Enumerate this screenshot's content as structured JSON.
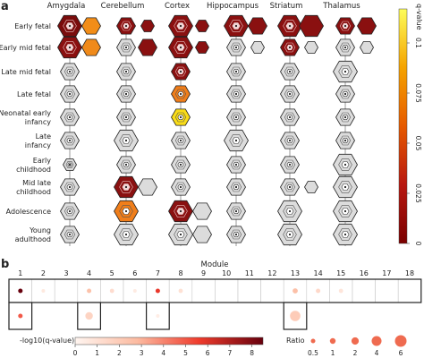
{
  "panel_labels": {
    "a": "a",
    "b": "b"
  },
  "chart_data": [
    {
      "type": "heatmap",
      "panel": "a",
      "regions": [
        "Amygdala",
        "Cerebellum",
        "Cortex",
        "Hippocampus",
        "Striatum",
        "Thalamus"
      ],
      "stages": [
        "Early fetal",
        "Early mid fetal",
        "Late mid fetal",
        "Late fetal",
        "Neonatal early infancy",
        "Late infancy",
        "Early childhood",
        "Mid late childhood",
        "Adolescence",
        "Young adulthood"
      ],
      "stage_lines": [
        [
          "Early fetal"
        ],
        [
          "Early mid fetal"
        ],
        [
          "Late mid fetal"
        ],
        [
          "Late fetal"
        ],
        [
          "Neonatal early",
          "infancy"
        ],
        [
          "Late",
          "infancy"
        ],
        [
          "Early",
          "childhood"
        ],
        [
          "Mid late",
          "childhood"
        ],
        [
          "Adolescence"
        ],
        [
          "Young",
          "adulthood"
        ]
      ],
      "colorbar": {
        "label": "q-value",
        "ticks": [
          "0.1",
          "0.075",
          "0.05",
          "0.025",
          "0"
        ],
        "stops": [
          "#fdfd5a",
          "#f5a300",
          "#e65a00",
          "#b81810",
          "#7a0000"
        ]
      },
      "cells": [
        [
          [
            3,
            "#7a0c0c"
          ],
          [
            2,
            "#f28d18"
          ],
          [
            2,
            "#8a1010"
          ],
          [
            1,
            "#8a1010"
          ],
          [
            3,
            "#8a1010"
          ],
          [
            1,
            "#8a1010"
          ],
          [
            3,
            "#8a1010"
          ],
          [
            2,
            "#8a1010"
          ],
          [
            3,
            "#8a1010"
          ],
          [
            3,
            "#8a1010"
          ],
          [
            2,
            "#8a1010"
          ],
          [
            2,
            "#8a1010"
          ]
        ],
        [
          [
            3,
            "#8a1010"
          ],
          [
            2,
            "#f08a1a"
          ],
          [
            2,
            "#dcdcdc"
          ],
          [
            2,
            "#8a1010"
          ],
          [
            3,
            "#8a1010"
          ],
          [
            1,
            "#8a1010"
          ],
          [
            2,
            "#dcdcdc"
          ],
          [
            1,
            "#dcdcdc"
          ],
          [
            2,
            "#8a1010"
          ],
          [
            1,
            "#dcdcdc"
          ],
          [
            2,
            "#dcdcdc"
          ],
          [
            1,
            "#dcdcdc"
          ]
        ],
        [
          [
            2,
            "#dcdcdc"
          ],
          [
            0,
            ""
          ],
          [
            2,
            "#dcdcdc"
          ],
          [
            0,
            ""
          ],
          [
            2,
            "#8a1010"
          ],
          [
            0,
            ""
          ],
          [
            2,
            "#dcdcdc"
          ],
          [
            0,
            ""
          ],
          [
            2,
            "#dcdcdc"
          ],
          [
            0,
            ""
          ],
          [
            3,
            "#dcdcdc"
          ],
          [
            0,
            ""
          ]
        ],
        [
          [
            2,
            "#dcdcdc"
          ],
          [
            0,
            ""
          ],
          [
            2,
            "#dcdcdc"
          ],
          [
            0,
            ""
          ],
          [
            2,
            "#f07e1a"
          ],
          [
            0,
            ""
          ],
          [
            2,
            "#dcdcdc"
          ],
          [
            0,
            ""
          ],
          [
            2,
            "#dcdcdc"
          ],
          [
            0,
            ""
          ],
          [
            2,
            "#dcdcdc"
          ],
          [
            0,
            ""
          ]
        ],
        [
          [
            2,
            "#dcdcdc"
          ],
          [
            0,
            ""
          ],
          [
            2,
            "#dcdcdc"
          ],
          [
            0,
            ""
          ],
          [
            2,
            "#f9dc18"
          ],
          [
            0,
            ""
          ],
          [
            2,
            "#dcdcdc"
          ],
          [
            0,
            ""
          ],
          [
            2,
            "#dcdcdc"
          ],
          [
            0,
            ""
          ],
          [
            2,
            "#dcdcdc"
          ],
          [
            0,
            ""
          ]
        ],
        [
          [
            2,
            "#dcdcdc"
          ],
          [
            0,
            ""
          ],
          [
            3,
            "#dcdcdc"
          ],
          [
            0,
            ""
          ],
          [
            2,
            "#dcdcdc"
          ],
          [
            0,
            ""
          ],
          [
            3,
            "#dcdcdc"
          ],
          [
            0,
            ""
          ],
          [
            2,
            "#dcdcdc"
          ],
          [
            0,
            ""
          ],
          [
            2,
            "#dcdcdc"
          ],
          [
            0,
            ""
          ]
        ],
        [
          [
            1,
            "#dcdcdc"
          ],
          [
            0,
            ""
          ],
          [
            2,
            "#dcdcdc"
          ],
          [
            0,
            ""
          ],
          [
            2,
            "#dcdcdc"
          ],
          [
            0,
            ""
          ],
          [
            2,
            "#dcdcdc"
          ],
          [
            0,
            ""
          ],
          [
            2,
            "#dcdcdc"
          ],
          [
            0,
            ""
          ],
          [
            3,
            "#dcdcdc"
          ],
          [
            0,
            ""
          ]
        ],
        [
          [
            2,
            "#dcdcdc"
          ],
          [
            0,
            ""
          ],
          [
            3,
            "#8a1010"
          ],
          [
            2,
            "#dcdcdc"
          ],
          [
            2,
            "#dcdcdc"
          ],
          [
            0,
            ""
          ],
          [
            2,
            "#dcdcdc"
          ],
          [
            0,
            ""
          ],
          [
            2,
            "#dcdcdc"
          ],
          [
            1,
            "#dcdcdc"
          ],
          [
            3,
            "#dcdcdc"
          ],
          [
            0,
            ""
          ]
        ],
        [
          [
            2,
            "#dcdcdc"
          ],
          [
            0,
            ""
          ],
          [
            3,
            "#f07e1a"
          ],
          [
            0,
            ""
          ],
          [
            3,
            "#8a1010"
          ],
          [
            2,
            "#dcdcdc"
          ],
          [
            2,
            "#dcdcdc"
          ],
          [
            0,
            ""
          ],
          [
            3,
            "#dcdcdc"
          ],
          [
            0,
            ""
          ],
          [
            3,
            "#dcdcdc"
          ],
          [
            0,
            ""
          ]
        ],
        [
          [
            2,
            "#dcdcdc"
          ],
          [
            0,
            ""
          ],
          [
            3,
            "#dcdcdc"
          ],
          [
            0,
            ""
          ],
          [
            3,
            "#dcdcdc"
          ],
          [
            2,
            "#dcdcdc"
          ],
          [
            2,
            "#dcdcdc"
          ],
          [
            0,
            ""
          ],
          [
            3,
            "#dcdcdc"
          ],
          [
            0,
            ""
          ],
          [
            3,
            "#dcdcdc"
          ],
          [
            0,
            ""
          ]
        ]
      ]
    },
    {
      "type": "scatter",
      "panel": "b",
      "xlabel": "Module",
      "modules": [
        "1",
        "2",
        "3",
        "4",
        "5",
        "6",
        "7",
        "8",
        "9",
        "10",
        "11",
        "12",
        "13",
        "14",
        "15",
        "16",
        "17",
        "18"
      ],
      "row1": [
        {
          "m": 1,
          "v": 8.5,
          "r": 0.6
        },
        {
          "m": 2,
          "v": 0.6,
          "r": 0.3
        },
        {
          "m": 4,
          "v": 2.5,
          "r": 0.6
        },
        {
          "m": 5,
          "v": 1.2,
          "r": 0.5
        },
        {
          "m": 6,
          "v": 0.5,
          "r": 0.3
        },
        {
          "m": 7,
          "v": 5.8,
          "r": 0.6
        },
        {
          "m": 8,
          "v": 1.0,
          "r": 0.5
        },
        {
          "m": 13,
          "v": 2.6,
          "r": 0.9
        },
        {
          "m": 14,
          "v": 1.4,
          "r": 0.6
        },
        {
          "m": 15,
          "v": 0.8,
          "r": 0.5
        }
      ],
      "row2": [
        {
          "m": 1,
          "v": 5.0,
          "r": 0.6
        },
        {
          "m": 4,
          "v": 1.6,
          "r": 2.4
        },
        {
          "m": 7,
          "v": 0.4,
          "r": 0.3
        },
        {
          "m": 13,
          "v": 2.0,
          "r": 5.2
        }
      ],
      "row2_boxes": [
        1,
        4,
        7,
        13
      ],
      "colorbar": {
        "label": "-log10(q-value)",
        "ticks": [
          "0",
          "1",
          "2",
          "3",
          "4",
          "5",
          "6",
          "7",
          "8"
        ],
        "max": 8.5
      },
      "size_legend": {
        "label": "Ratio",
        "entries": [
          {
            "label": "0.5",
            "r": 0.5
          },
          {
            "label": "1",
            "r": 1
          },
          {
            "label": "2",
            "r": 2
          },
          {
            "label": "4",
            "r": 4
          },
          {
            "label": "6",
            "r": 6
          }
        ]
      }
    }
  ]
}
